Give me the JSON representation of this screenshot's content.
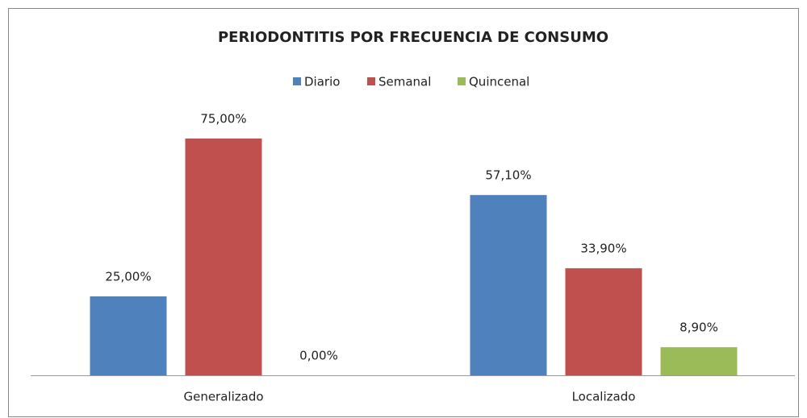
{
  "chart_data": {
    "type": "bar",
    "title": "PERIODONTITIS POR FRECUENCIA DE CONSUMO",
    "categories": [
      "Generalizado",
      "Localizado"
    ],
    "series": [
      {
        "name": "Diario",
        "color": "#4f81bd",
        "values": [
          25,
          57.1
        ],
        "value_labels": [
          "25,00%",
          "57,10%"
        ]
      },
      {
        "name": "Semanal",
        "color": "#c0504d",
        "values": [
          75,
          33.9
        ],
        "value_labels": [
          "75,00%",
          "33,90%"
        ]
      },
      {
        "name": "Quincenal",
        "color": "#9bbb59",
        "values": [
          0,
          8.9
        ],
        "value_labels": [
          "0,00%",
          "8,90%"
        ]
      }
    ],
    "legend": "top"
  }
}
